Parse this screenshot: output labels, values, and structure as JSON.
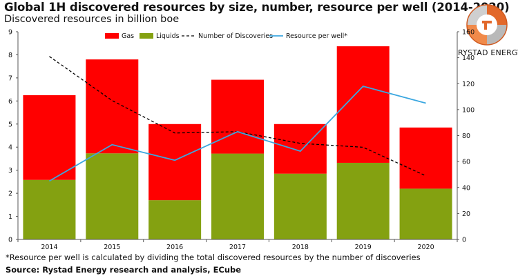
{
  "title": "Global 1H discovered resources by size, number, resource per well (2014-2020)",
  "subtitle": "Discovered resources in billion boe",
  "footnote": "*Resource per well is calculated by dividing the total discovered resources by the number of discoveries",
  "source": "Source: Rystad Energy research and analysis, ECube",
  "brand": "RYSTAD ENERGY",
  "colors": {
    "gas": "#ff0000",
    "liquids": "#84a111",
    "discoveries": "#000000",
    "per_well": "#3ba7e0"
  },
  "chart_data": {
    "type": "bar",
    "stacked": true,
    "categories": [
      "2014",
      "2015",
      "2016",
      "2017",
      "2018",
      "2019",
      "2020"
    ],
    "series": [
      {
        "name": "Gas",
        "axis": "left",
        "kind": "bar",
        "values": [
          3.67,
          4.07,
          3.3,
          3.2,
          2.15,
          5.05,
          2.65
        ]
      },
      {
        "name": "Liquids",
        "axis": "left",
        "kind": "bar",
        "values": [
          2.58,
          3.73,
          1.7,
          3.72,
          2.85,
          3.32,
          2.2
        ]
      },
      {
        "name": "Number of Discoveries",
        "axis": "right",
        "kind": "line",
        "style": "dashed",
        "values": [
          141,
          107,
          82,
          83,
          74,
          71,
          49
        ]
      },
      {
        "name": "Resource per well*",
        "axis": "right",
        "kind": "line",
        "style": "solid",
        "values": [
          45,
          73,
          61,
          83,
          68,
          118,
          105
        ]
      }
    ],
    "y_left": {
      "min": 0,
      "max": 9,
      "ticks": [
        "0",
        "1",
        "2",
        "3",
        "4",
        "5",
        "6",
        "7",
        "8",
        "9"
      ]
    },
    "y_right": {
      "min": 0,
      "max": 160,
      "ticks": [
        "0",
        "20",
        "40",
        "60",
        "80",
        "100",
        "120",
        "140",
        "160"
      ]
    },
    "grid": false,
    "legend": "top"
  }
}
